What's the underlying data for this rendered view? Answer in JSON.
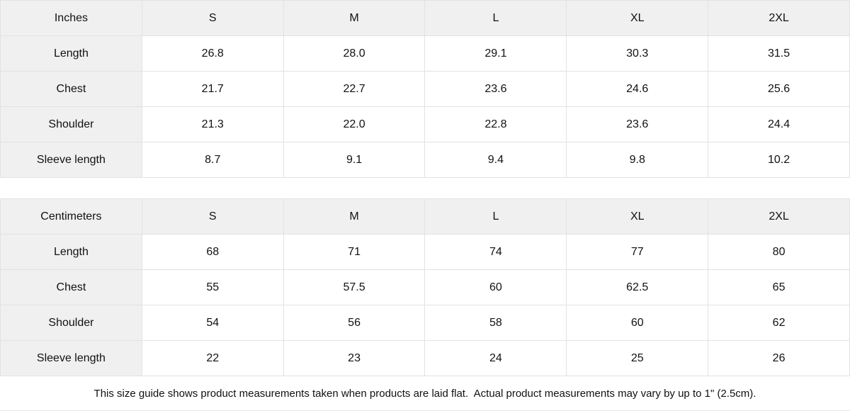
{
  "colors": {
    "header_bg": "#f0f0f0",
    "cell_bg": "#ffffff",
    "border": "#e2e2e2",
    "text": "#111111"
  },
  "tables": [
    {
      "unit_label": "Inches",
      "columns": [
        "S",
        "M",
        "L",
        "XL",
        "2XL"
      ],
      "rows": [
        {
          "label": "Length",
          "values": [
            "26.8",
            "28.0",
            "29.1",
            "30.3",
            "31.5"
          ]
        },
        {
          "label": "Chest",
          "values": [
            "21.7",
            "22.7",
            "23.6",
            "24.6",
            "25.6"
          ]
        },
        {
          "label": "Shoulder",
          "values": [
            "21.3",
            "22.0",
            "22.8",
            "23.6",
            "24.4"
          ]
        },
        {
          "label": "Sleeve length",
          "values": [
            "8.7",
            "9.1",
            "9.4",
            "9.8",
            "10.2"
          ]
        }
      ]
    },
    {
      "unit_label": "Centimeters",
      "columns": [
        "S",
        "M",
        "L",
        "XL",
        "2XL"
      ],
      "rows": [
        {
          "label": "Length",
          "values": [
            "68",
            "71",
            "74",
            "77",
            "80"
          ]
        },
        {
          "label": "Chest",
          "values": [
            "55",
            "57.5",
            "60",
            "62.5",
            "65"
          ]
        },
        {
          "label": "Shoulder",
          "values": [
            "54",
            "56",
            "58",
            "60",
            "62"
          ]
        },
        {
          "label": "Sleeve length",
          "values": [
            "22",
            "23",
            "24",
            "25",
            "26"
          ]
        }
      ]
    }
  ],
  "footer_note": "This size guide shows product measurements taken when products are laid flat.  Actual product measurements may vary by up to 1\" (2.5cm)."
}
